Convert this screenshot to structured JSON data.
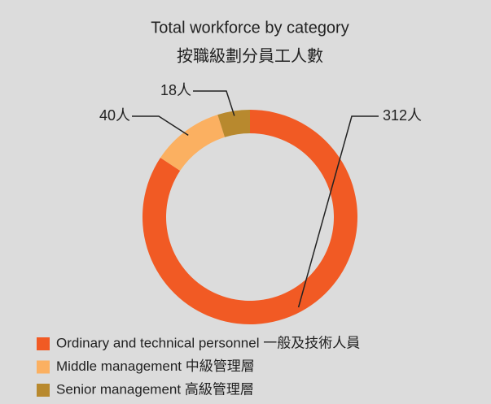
{
  "chart_data": {
    "type": "donut",
    "title": "Total workforce by category",
    "subtitle": "按職級劃分員工人數",
    "categories": [
      "Ordinary and technical personnel 一般及技術人員",
      "Middle management 中級管理層",
      "Senior management 高級管理層"
    ],
    "values": [
      312,
      40,
      18
    ],
    "value_labels": [
      "312人",
      "40人",
      "18人"
    ],
    "colors": [
      "#f15a24",
      "#fbb061",
      "#b8892e"
    ],
    "legend": "bottom"
  }
}
